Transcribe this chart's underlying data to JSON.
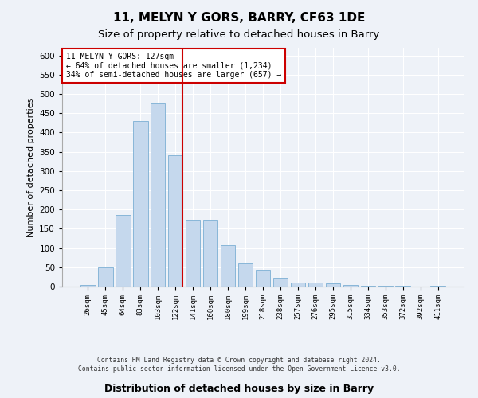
{
  "title": "11, MELYN Y GORS, BARRY, CF63 1DE",
  "subtitle": "Size of property relative to detached houses in Barry",
  "xlabel": "Distribution of detached houses by size in Barry",
  "ylabel": "Number of detached properties",
  "categories": [
    "26sqm",
    "45sqm",
    "64sqm",
    "83sqm",
    "103sqm",
    "122sqm",
    "141sqm",
    "160sqm",
    "180sqm",
    "199sqm",
    "218sqm",
    "238sqm",
    "257sqm",
    "276sqm",
    "295sqm",
    "315sqm",
    "334sqm",
    "353sqm",
    "372sqm",
    "392sqm",
    "411sqm"
  ],
  "values": [
    5,
    50,
    185,
    430,
    475,
    340,
    172,
    172,
    107,
    60,
    44,
    22,
    10,
    10,
    8,
    5,
    3,
    2,
    2,
    1,
    3
  ],
  "bar_color": "#c5d8ed",
  "bar_edge_color": "#7bafd4",
  "vline_color": "#cc0000",
  "annotation_text": "11 MELYN Y GORS: 127sqm\n← 64% of detached houses are smaller (1,234)\n34% of semi-detached houses are larger (657) →",
  "annotation_box_color": "white",
  "annotation_box_edge": "#cc0000",
  "footer": "Contains HM Land Registry data © Crown copyright and database right 2024.\nContains public sector information licensed under the Open Government Licence v3.0.",
  "title_fontsize": 11,
  "subtitle_fontsize": 9.5,
  "xlabel_fontsize": 9,
  "ylabel_fontsize": 8,
  "background_color": "#eef2f8",
  "plot_bg_color": "#eef2f8",
  "ylim": [
    0,
    620
  ],
  "grid_color": "white",
  "yticks": [
    0,
    50,
    100,
    150,
    200,
    250,
    300,
    350,
    400,
    450,
    500,
    550,
    600
  ]
}
